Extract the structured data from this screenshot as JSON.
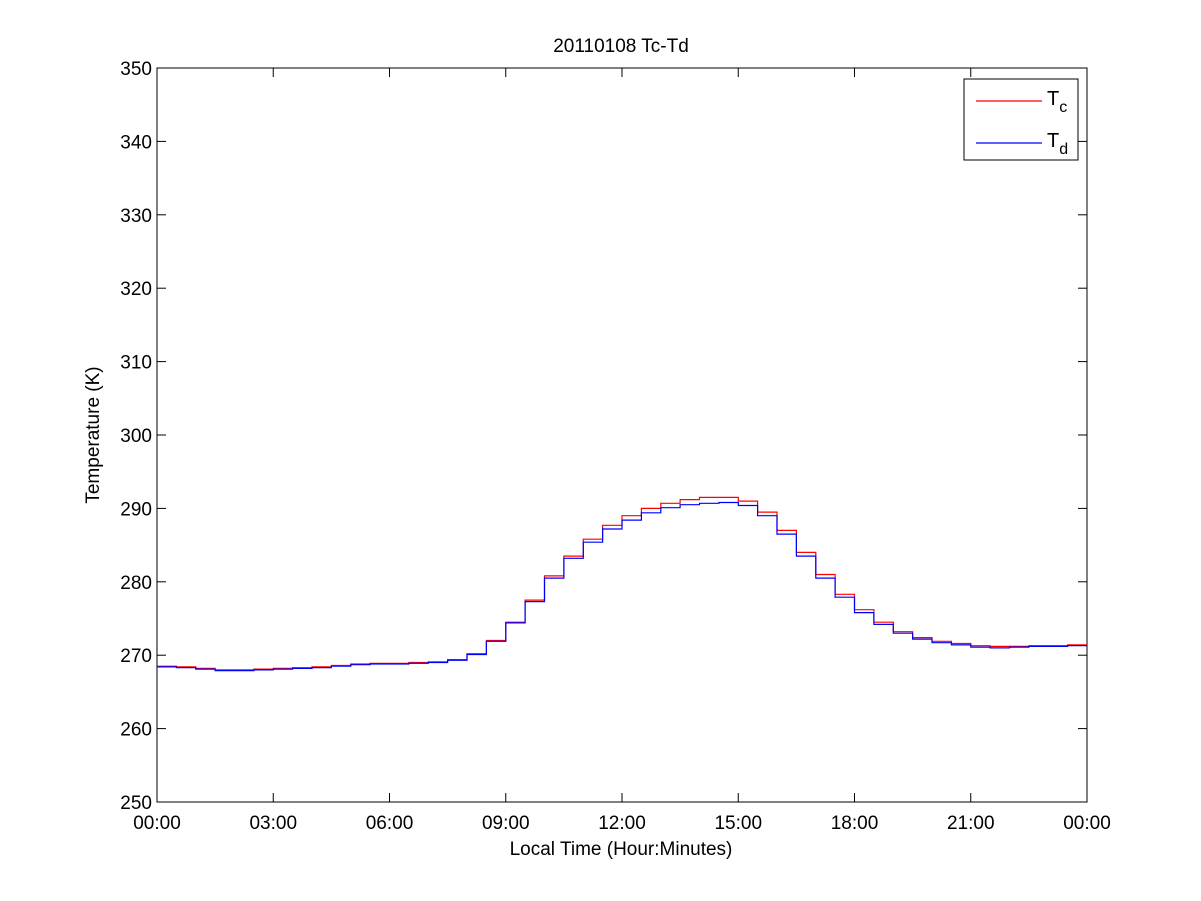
{
  "chart_data": {
    "type": "line",
    "title": "20110108 Tc-Td",
    "xlabel": "Local Time (Hour:Minutes)",
    "ylabel": "Temperature (K)",
    "xlim": [
      0,
      24
    ],
    "ylim": [
      250,
      350
    ],
    "x_ticks": [
      0,
      3,
      6,
      9,
      12,
      15,
      18,
      21,
      24
    ],
    "x_tick_labels": [
      "00:00",
      "03:00",
      "06:00",
      "09:00",
      "12:00",
      "15:00",
      "18:00",
      "21:00",
      "00:00"
    ],
    "y_ticks": [
      250,
      260,
      270,
      280,
      290,
      300,
      310,
      320,
      330,
      340,
      350
    ],
    "y_tick_labels": [
      "250",
      "260",
      "270",
      "280",
      "290",
      "300",
      "310",
      "320",
      "330",
      "340",
      "350"
    ],
    "grid": false,
    "legend_position": "top-right",
    "x_unit": "hours",
    "series": [
      {
        "name": "Tc",
        "legend_main": "T",
        "legend_sub": "c",
        "color": "#ff0000",
        "x": [
          0,
          0.5,
          1.0,
          1.5,
          2.0,
          2.5,
          3.0,
          3.5,
          4.0,
          4.5,
          5.0,
          5.5,
          6.0,
          6.5,
          7.0,
          7.5,
          8.0,
          8.5,
          9.0,
          9.5,
          10.0,
          10.5,
          11.0,
          11.5,
          12.0,
          12.5,
          13.0,
          13.5,
          14.0,
          14.5,
          15.0,
          15.5,
          16.0,
          16.5,
          17.0,
          17.5,
          18.0,
          18.5,
          19.0,
          19.5,
          20.0,
          20.5,
          21.0,
          21.5,
          22.0,
          22.5,
          23.0,
          23.5,
          24.0
        ],
        "values": [
          268.5,
          268.4,
          268.2,
          268.0,
          268.0,
          268.1,
          268.2,
          268.3,
          268.4,
          268.6,
          268.8,
          268.9,
          268.9,
          269.0,
          269.1,
          269.4,
          270.2,
          272.0,
          274.5,
          277.5,
          280.8,
          283.5,
          285.8,
          287.7,
          289.0,
          290.0,
          290.7,
          291.2,
          291.5,
          291.5,
          291.0,
          289.5,
          287.0,
          284.0,
          281.0,
          278.3,
          276.2,
          274.5,
          273.2,
          272.4,
          271.9,
          271.6,
          271.3,
          271.2,
          271.2,
          271.3,
          271.3,
          271.4,
          271.4
        ]
      },
      {
        "name": "Td",
        "legend_main": "T",
        "legend_sub": "d",
        "color": "#0000ff",
        "x": [
          0,
          0.5,
          1.0,
          1.5,
          2.0,
          2.5,
          3.0,
          3.5,
          4.0,
          4.5,
          5.0,
          5.5,
          6.0,
          6.5,
          7.0,
          7.5,
          8.0,
          8.5,
          9.0,
          9.5,
          10.0,
          10.5,
          11.0,
          11.5,
          12.0,
          12.5,
          13.0,
          13.5,
          14.0,
          14.5,
          15.0,
          15.5,
          16.0,
          16.5,
          17.0,
          17.5,
          18.0,
          18.5,
          19.0,
          19.5,
          20.0,
          20.5,
          21.0,
          21.5,
          22.0,
          22.5,
          23.0,
          23.5,
          24.0
        ],
        "values": [
          268.4,
          268.3,
          268.1,
          267.9,
          267.9,
          268.0,
          268.1,
          268.2,
          268.3,
          268.5,
          268.7,
          268.8,
          268.8,
          268.9,
          269.0,
          269.3,
          270.1,
          271.9,
          274.4,
          277.3,
          280.5,
          283.2,
          285.4,
          287.2,
          288.4,
          289.4,
          290.1,
          290.5,
          290.7,
          290.8,
          290.4,
          289.0,
          286.5,
          283.5,
          280.5,
          277.9,
          275.8,
          274.2,
          273.0,
          272.2,
          271.7,
          271.4,
          271.1,
          271.0,
          271.1,
          271.2,
          271.2,
          271.3,
          271.3
        ]
      }
    ]
  }
}
